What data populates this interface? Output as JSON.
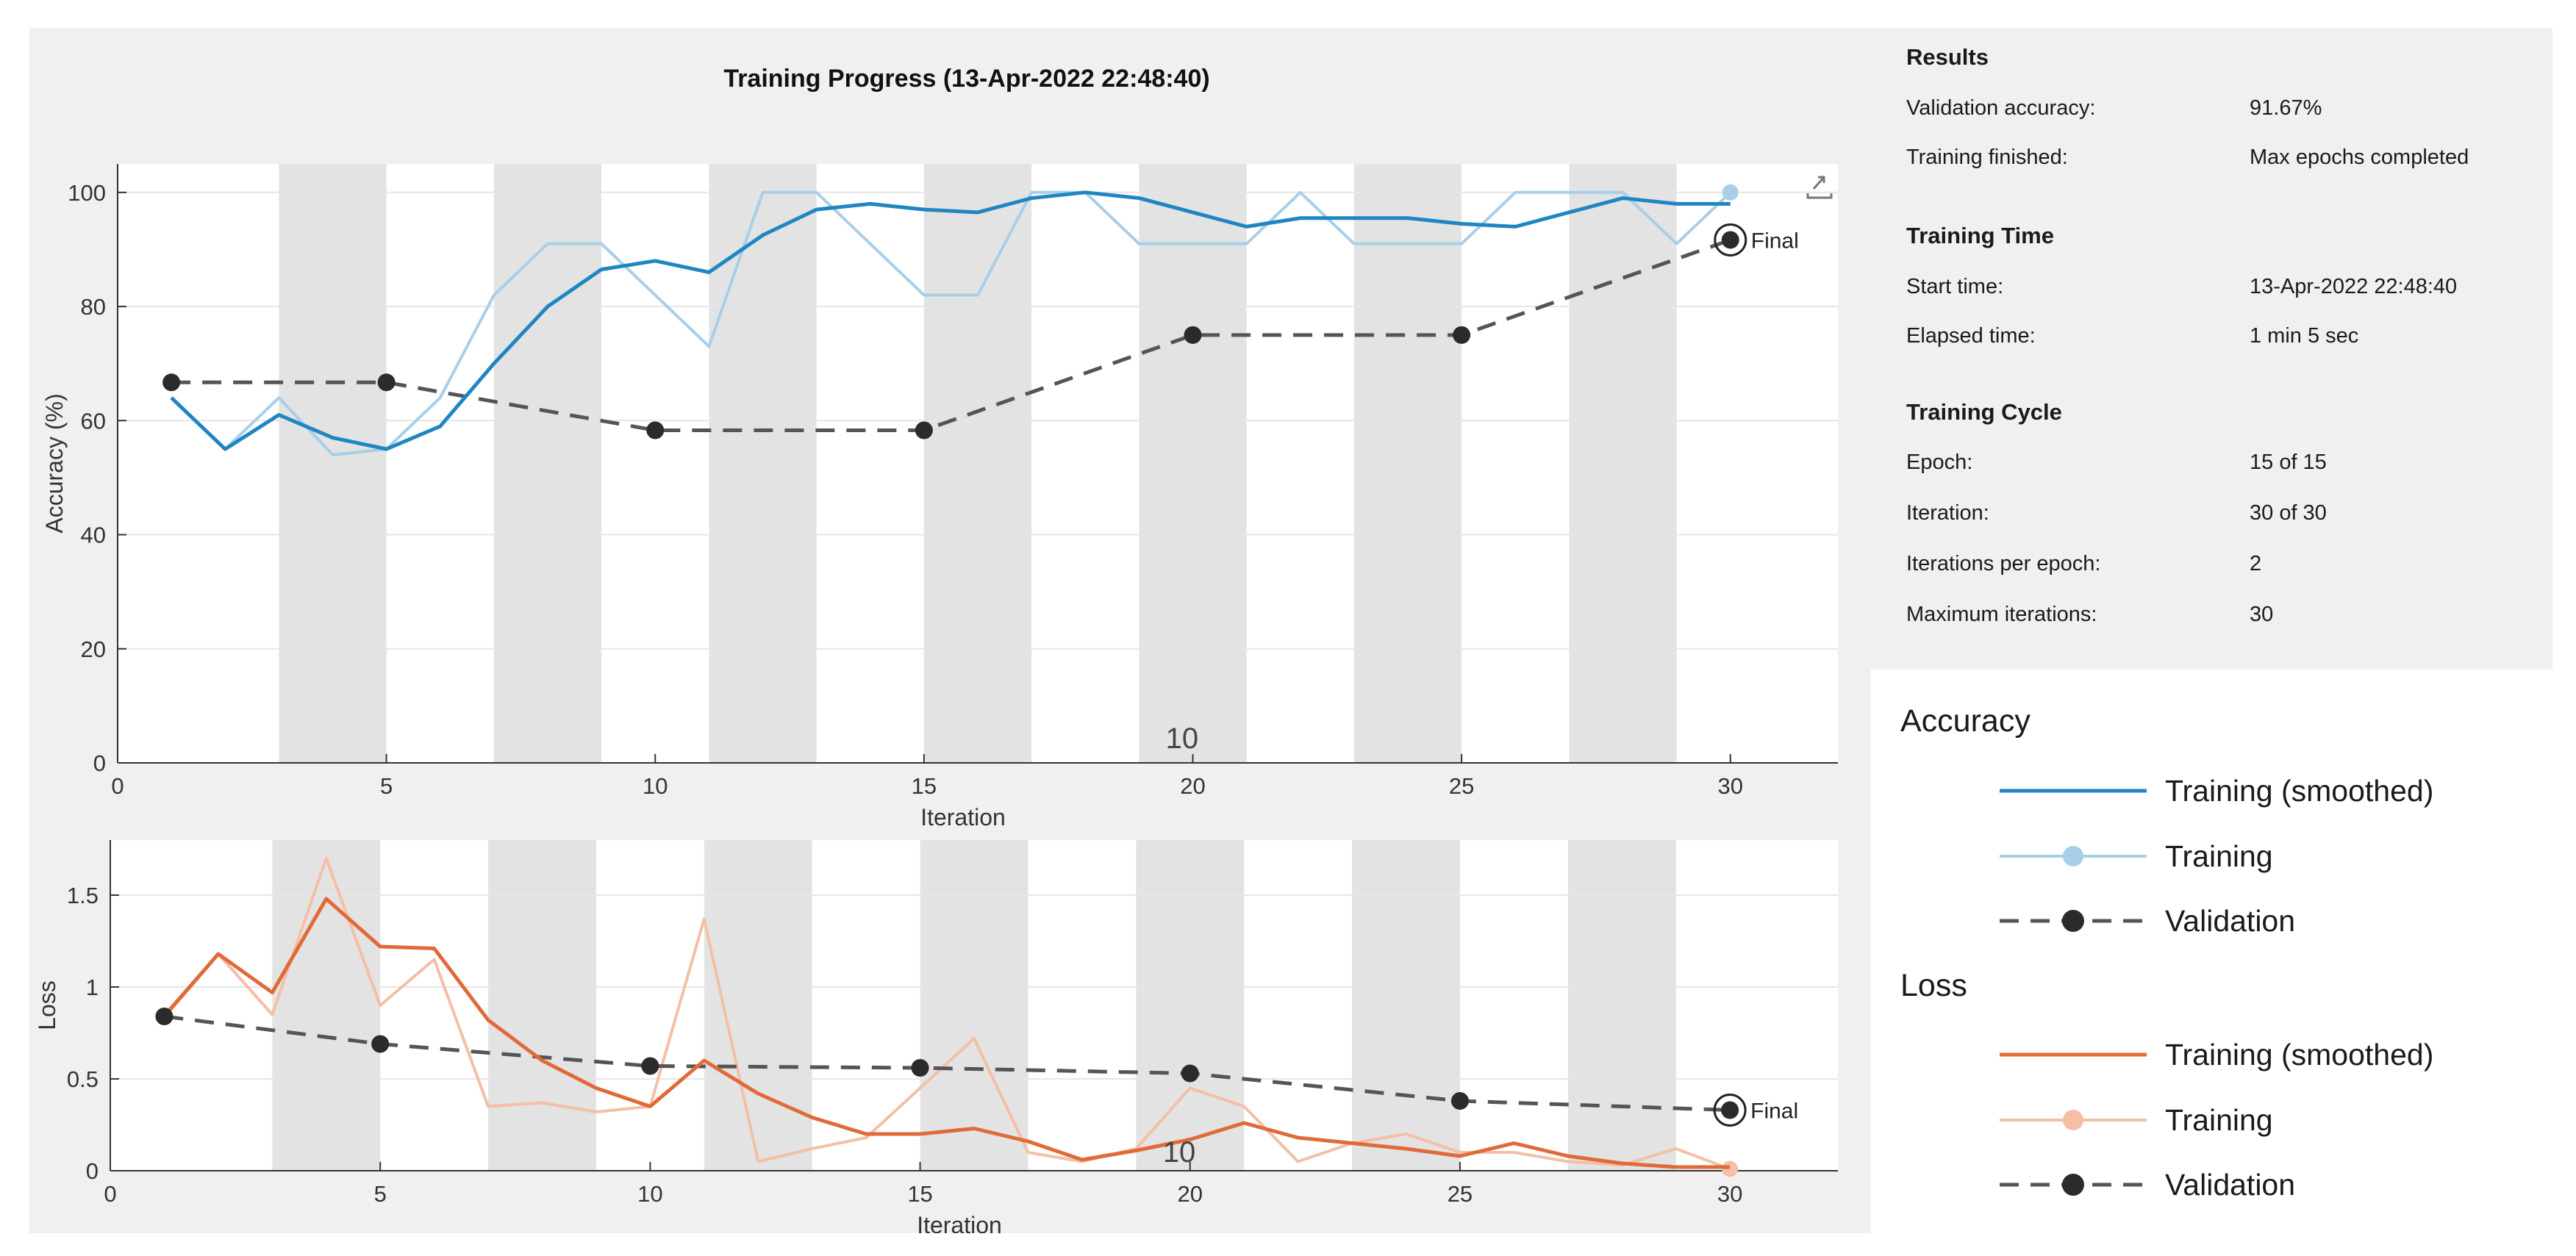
{
  "chart_data": [
    {
      "id": "accuracy",
      "type": "line",
      "title": "Training Progress (13-Apr-2022 22:48:40)",
      "xlabel": "Iteration",
      "ylabel": "Accuracy (%)",
      "xlim": [
        0,
        32
      ],
      "ylim": [
        0,
        105
      ],
      "xticks": [
        0,
        5,
        10,
        15,
        20,
        25,
        30
      ],
      "yticks": [
        0,
        20,
        40,
        60,
        80,
        100
      ],
      "epoch_shading": [
        [
          3,
          5
        ],
        [
          7,
          9
        ],
        [
          11,
          13
        ],
        [
          15,
          17
        ],
        [
          19,
          21
        ],
        [
          23,
          25
        ],
        [
          27,
          29
        ]
      ],
      "annotation": "10",
      "final_label": "Final",
      "series": [
        {
          "name": "Training",
          "color": "#a9cfe8",
          "x": [
            1,
            2,
            3,
            4,
            5,
            6,
            7,
            8,
            9,
            10,
            11,
            12,
            13,
            14,
            15,
            16,
            17,
            18,
            19,
            20,
            21,
            22,
            23,
            24,
            25,
            26,
            27,
            28,
            29,
            30
          ],
          "y": [
            64,
            55,
            64,
            54,
            55,
            64,
            82,
            91,
            91,
            82,
            73,
            100,
            100,
            91,
            82,
            82,
            100,
            100,
            91,
            91,
            91,
            100,
            91,
            91,
            91,
            100,
            100,
            100,
            91,
            100
          ]
        },
        {
          "name": "Training (smoothed)",
          "color": "#1f86c1",
          "x": [
            1,
            2,
            3,
            4,
            5,
            6,
            7,
            8,
            9,
            10,
            11,
            12,
            13,
            14,
            15,
            16,
            17,
            18,
            19,
            20,
            21,
            22,
            23,
            24,
            25,
            26,
            27,
            28,
            29,
            30
          ],
          "y": [
            64,
            55,
            61,
            57,
            55,
            59,
            70,
            80,
            86.5,
            88,
            86,
            92.5,
            97,
            98,
            97,
            96.5,
            99,
            100,
            99,
            96.5,
            94,
            95.5,
            95.5,
            95.5,
            94.5,
            94,
            96.5,
            99,
            98,
            98
          ]
        },
        {
          "name": "Validation",
          "color": "#555555",
          "x": [
            1,
            5,
            10,
            15,
            20,
            25,
            30
          ],
          "y": [
            66.7,
            66.7,
            58.3,
            58.3,
            75,
            75,
            91.67
          ]
        }
      ]
    },
    {
      "id": "loss",
      "type": "line",
      "title": "",
      "xlabel": "Iteration",
      "ylabel": "Loss",
      "xlim": [
        0,
        32
      ],
      "ylim": [
        0,
        1.8
      ],
      "xticks": [
        0,
        5,
        10,
        15,
        20,
        25,
        30
      ],
      "yticks": [
        0,
        0.5,
        1,
        1.5
      ],
      "ytick_labels": [
        "0",
        "0.5",
        "1",
        "1.5"
      ],
      "epoch_shading": [
        [
          3,
          5
        ],
        [
          7,
          9
        ],
        [
          11,
          13
        ],
        [
          15,
          17
        ],
        [
          19,
          21
        ],
        [
          23,
          25
        ],
        [
          27,
          29
        ]
      ],
      "annotation": "10",
      "final_label": "Final",
      "series": [
        {
          "name": "Training",
          "color": "#f4bfa6",
          "x": [
            1,
            2,
            3,
            4,
            5,
            6,
            7,
            8,
            9,
            10,
            11,
            12,
            13,
            14,
            15,
            16,
            17,
            18,
            19,
            20,
            21,
            22,
            23,
            24,
            25,
            26,
            27,
            28,
            29,
            30
          ],
          "y": [
            0.85,
            1.18,
            0.85,
            1.7,
            0.9,
            1.15,
            0.35,
            0.37,
            0.32,
            0.35,
            1.37,
            0.05,
            0.12,
            0.18,
            0.45,
            0.72,
            0.1,
            0.05,
            0.12,
            0.45,
            0.35,
            0.05,
            0.15,
            0.2,
            0.1,
            0.1,
            0.05,
            0.03,
            0.12,
            0.01
          ]
        },
        {
          "name": "Training (smoothed)",
          "color": "#e06a38",
          "x": [
            1,
            2,
            3,
            4,
            5,
            6,
            7,
            8,
            9,
            10,
            11,
            12,
            13,
            14,
            15,
            16,
            17,
            18,
            19,
            20,
            21,
            22,
            23,
            24,
            25,
            26,
            27,
            28,
            29,
            30
          ],
          "y": [
            0.84,
            1.18,
            0.97,
            1.48,
            1.22,
            1.21,
            0.82,
            0.6,
            0.45,
            0.35,
            0.6,
            0.42,
            0.29,
            0.2,
            0.2,
            0.23,
            0.16,
            0.06,
            0.11,
            0.17,
            0.26,
            0.18,
            0.15,
            0.12,
            0.08,
            0.15,
            0.08,
            0.04,
            0.02,
            0.02
          ]
        },
        {
          "name": "Validation",
          "color": "#555555",
          "x": [
            1,
            5,
            10,
            15,
            20,
            25,
            30
          ],
          "y": [
            0.84,
            0.69,
            0.57,
            0.56,
            0.53,
            0.38,
            0.33
          ]
        }
      ]
    }
  ],
  "results": {
    "title": "Results",
    "rows": [
      {
        "label": "Validation accuracy:",
        "value": "91.67%"
      },
      {
        "label": "Training finished:",
        "value": "Max epochs completed"
      }
    ]
  },
  "training_time": {
    "title": "Training Time",
    "rows": [
      {
        "label": "Start time:",
        "value": "13-Apr-2022 22:48:40"
      },
      {
        "label": "Elapsed time:",
        "value": "1 min 5 sec"
      }
    ]
  },
  "training_cycle": {
    "title": "Training Cycle",
    "rows": [
      {
        "label": "Epoch:",
        "value": "15 of 15"
      },
      {
        "label": "Iteration:",
        "value": "30 of 30"
      },
      {
        "label": "Iterations per epoch:",
        "value": "2"
      },
      {
        "label": "Maximum iterations:",
        "value": "30"
      }
    ]
  },
  "legend": {
    "accuracy_title": "Accuracy",
    "loss_title": "Loss",
    "accuracy_items": [
      {
        "label": "Training (smoothed)",
        "color": "#1f86c1",
        "style": "line"
      },
      {
        "label": "Training",
        "color": "#a9cfe8",
        "style": "line-marker"
      },
      {
        "label": "Validation",
        "color": "#555555",
        "style": "dashed-marker"
      }
    ],
    "loss_items": [
      {
        "label": "Training (smoothed)",
        "color": "#e06a38",
        "style": "line"
      },
      {
        "label": "Training",
        "color": "#f4bfa6",
        "style": "line-marker"
      },
      {
        "label": "Validation",
        "color": "#555555",
        "style": "dashed-marker"
      }
    ]
  },
  "toolbar": {
    "export_icon": "export-icon"
  }
}
